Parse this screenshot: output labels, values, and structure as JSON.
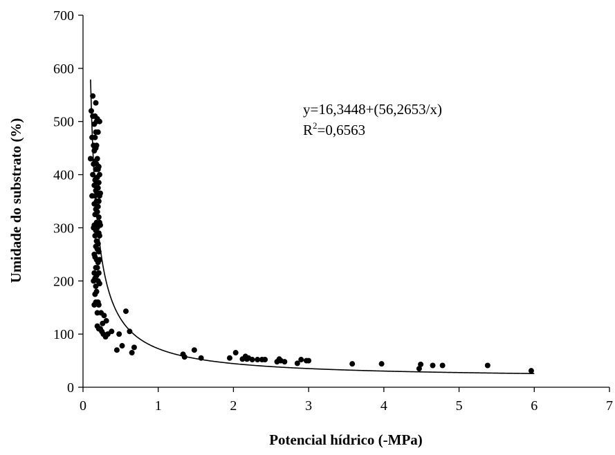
{
  "chart_data": {
    "type": "scatter",
    "xlabel": "Potencial hídrico (-MPa)",
    "ylabel": "Umidade do substrato (%)",
    "xlim": [
      0,
      7
    ],
    "ylim": [
      0,
      700
    ],
    "xticks": [
      "0",
      "1",
      "2",
      "3",
      "4",
      "5",
      "6",
      "7"
    ],
    "yticks": [
      "0",
      "100",
      "200",
      "300",
      "400",
      "500",
      "600",
      "700"
    ],
    "grid": false,
    "legend": "none",
    "annotation": {
      "equation": "y=16,3448+(56,2653/x)",
      "r2_prefix": "R",
      "r2_sup": "2",
      "r2_value": "=0,6563"
    },
    "fit": {
      "a": 16.3448,
      "b": 56.2653,
      "x_range": [
        0.1,
        6.0
      ]
    },
    "points": [
      [
        0.1,
        430
      ],
      [
        0.11,
        520
      ],
      [
        0.12,
        360
      ],
      [
        0.12,
        470
      ],
      [
        0.13,
        548
      ],
      [
        0.13,
        510
      ],
      [
        0.13,
        400
      ],
      [
        0.14,
        455
      ],
      [
        0.14,
        420
      ],
      [
        0.14,
        300
      ],
      [
        0.14,
        200
      ],
      [
        0.15,
        495
      ],
      [
        0.15,
        445
      ],
      [
        0.15,
        380
      ],
      [
        0.15,
        345
      ],
      [
        0.15,
        305
      ],
      [
        0.15,
        250
      ],
      [
        0.15,
        215
      ],
      [
        0.15,
        155
      ],
      [
        0.16,
        510
      ],
      [
        0.16,
        470
      ],
      [
        0.16,
        425
      ],
      [
        0.16,
        390
      ],
      [
        0.16,
        360
      ],
      [
        0.16,
        325
      ],
      [
        0.16,
        285
      ],
      [
        0.16,
        245
      ],
      [
        0.16,
        205
      ],
      [
        0.16,
        175
      ],
      [
        0.17,
        535
      ],
      [
        0.17,
        480
      ],
      [
        0.17,
        450
      ],
      [
        0.17,
        410
      ],
      [
        0.17,
        370
      ],
      [
        0.17,
        335
      ],
      [
        0.17,
        295
      ],
      [
        0.17,
        265
      ],
      [
        0.17,
        225
      ],
      [
        0.17,
        190
      ],
      [
        0.17,
        160
      ],
      [
        0.18,
        500
      ],
      [
        0.18,
        455
      ],
      [
        0.18,
        420
      ],
      [
        0.18,
        385
      ],
      [
        0.18,
        350
      ],
      [
        0.18,
        310
      ],
      [
        0.18,
        275
      ],
      [
        0.18,
        240
      ],
      [
        0.18,
        210
      ],
      [
        0.18,
        180
      ],
      [
        0.19,
        505
      ],
      [
        0.19,
        430
      ],
      [
        0.19,
        395
      ],
      [
        0.19,
        365
      ],
      [
        0.19,
        330
      ],
      [
        0.19,
        300
      ],
      [
        0.19,
        260
      ],
      [
        0.19,
        225
      ],
      [
        0.19,
        140
      ],
      [
        0.19,
        115
      ],
      [
        0.2,
        480
      ],
      [
        0.2,
        410
      ],
      [
        0.2,
        375
      ],
      [
        0.2,
        340
      ],
      [
        0.2,
        305
      ],
      [
        0.2,
        270
      ],
      [
        0.2,
        235
      ],
      [
        0.2,
        200
      ],
      [
        0.2,
        160
      ],
      [
        0.21,
        415
      ],
      [
        0.21,
        385
      ],
      [
        0.21,
        350
      ],
      [
        0.21,
        320
      ],
      [
        0.21,
        290
      ],
      [
        0.21,
        255
      ],
      [
        0.21,
        215
      ],
      [
        0.21,
        155
      ],
      [
        0.21,
        110
      ],
      [
        0.22,
        500
      ],
      [
        0.22,
        400
      ],
      [
        0.22,
        360
      ],
      [
        0.22,
        310
      ],
      [
        0.22,
        285
      ],
      [
        0.22,
        240
      ],
      [
        0.22,
        195
      ],
      [
        0.23,
        365
      ],
      [
        0.23,
        305
      ],
      [
        0.23,
        110
      ],
      [
        0.24,
        140
      ],
      [
        0.25,
        105
      ],
      [
        0.26,
        120
      ],
      [
        0.27,
        100
      ],
      [
        0.28,
        135
      ],
      [
        0.3,
        95
      ],
      [
        0.31,
        125
      ],
      [
        0.33,
        100
      ],
      [
        0.38,
        105
      ],
      [
        0.45,
        70
      ],
      [
        0.48,
        100
      ],
      [
        0.52,
        78
      ],
      [
        0.57,
        143
      ],
      [
        0.62,
        105
      ],
      [
        0.65,
        65
      ],
      [
        0.68,
        75
      ],
      [
        1.33,
        62
      ],
      [
        1.35,
        57
      ],
      [
        1.48,
        70
      ],
      [
        1.57,
        55
      ],
      [
        1.95,
        55
      ],
      [
        2.03,
        65
      ],
      [
        2.12,
        53
      ],
      [
        2.16,
        58
      ],
      [
        2.18,
        53
      ],
      [
        2.2,
        55
      ],
      [
        2.25,
        52
      ],
      [
        2.32,
        52
      ],
      [
        2.38,
        52
      ],
      [
        2.42,
        52
      ],
      [
        2.58,
        48
      ],
      [
        2.61,
        53
      ],
      [
        2.63,
        50
      ],
      [
        2.68,
        48
      ],
      [
        2.85,
        45
      ],
      [
        2.9,
        52
      ],
      [
        2.97,
        50
      ],
      [
        3.0,
        50
      ],
      [
        3.58,
        44
      ],
      [
        3.97,
        44
      ],
      [
        4.47,
        35
      ],
      [
        4.49,
        43
      ],
      [
        4.65,
        41
      ],
      [
        4.78,
        41
      ],
      [
        5.38,
        41
      ],
      [
        5.96,
        31
      ]
    ]
  }
}
